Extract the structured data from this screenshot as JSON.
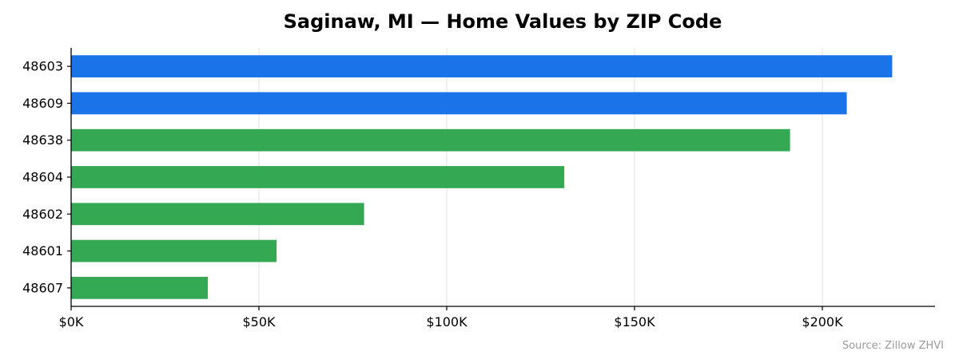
{
  "chart_data": {
    "type": "bar",
    "orientation": "horizontal",
    "title": "Saginaw, MI — Home Values by ZIP Code",
    "xlabel": "",
    "ylabel": "",
    "categories": [
      "48603",
      "48609",
      "48638",
      "48604",
      "48602",
      "48601",
      "48607"
    ],
    "values": [
      218600,
      206500,
      191400,
      131300,
      78000,
      54700,
      36400
    ],
    "bar_colors": [
      "#1a73e8",
      "#1a73e8",
      "#34a853",
      "#34a853",
      "#34a853",
      "#34a853",
      "#34a853"
    ],
    "xlim": [
      0,
      230000
    ],
    "xticks": [
      0,
      50000,
      100000,
      150000,
      200000
    ],
    "xtick_labels": [
      "$0K",
      "$50K",
      "$100K",
      "$150K",
      "$200K"
    ],
    "grid": "vertical",
    "source": "Source: Zillow ZHVI"
  }
}
